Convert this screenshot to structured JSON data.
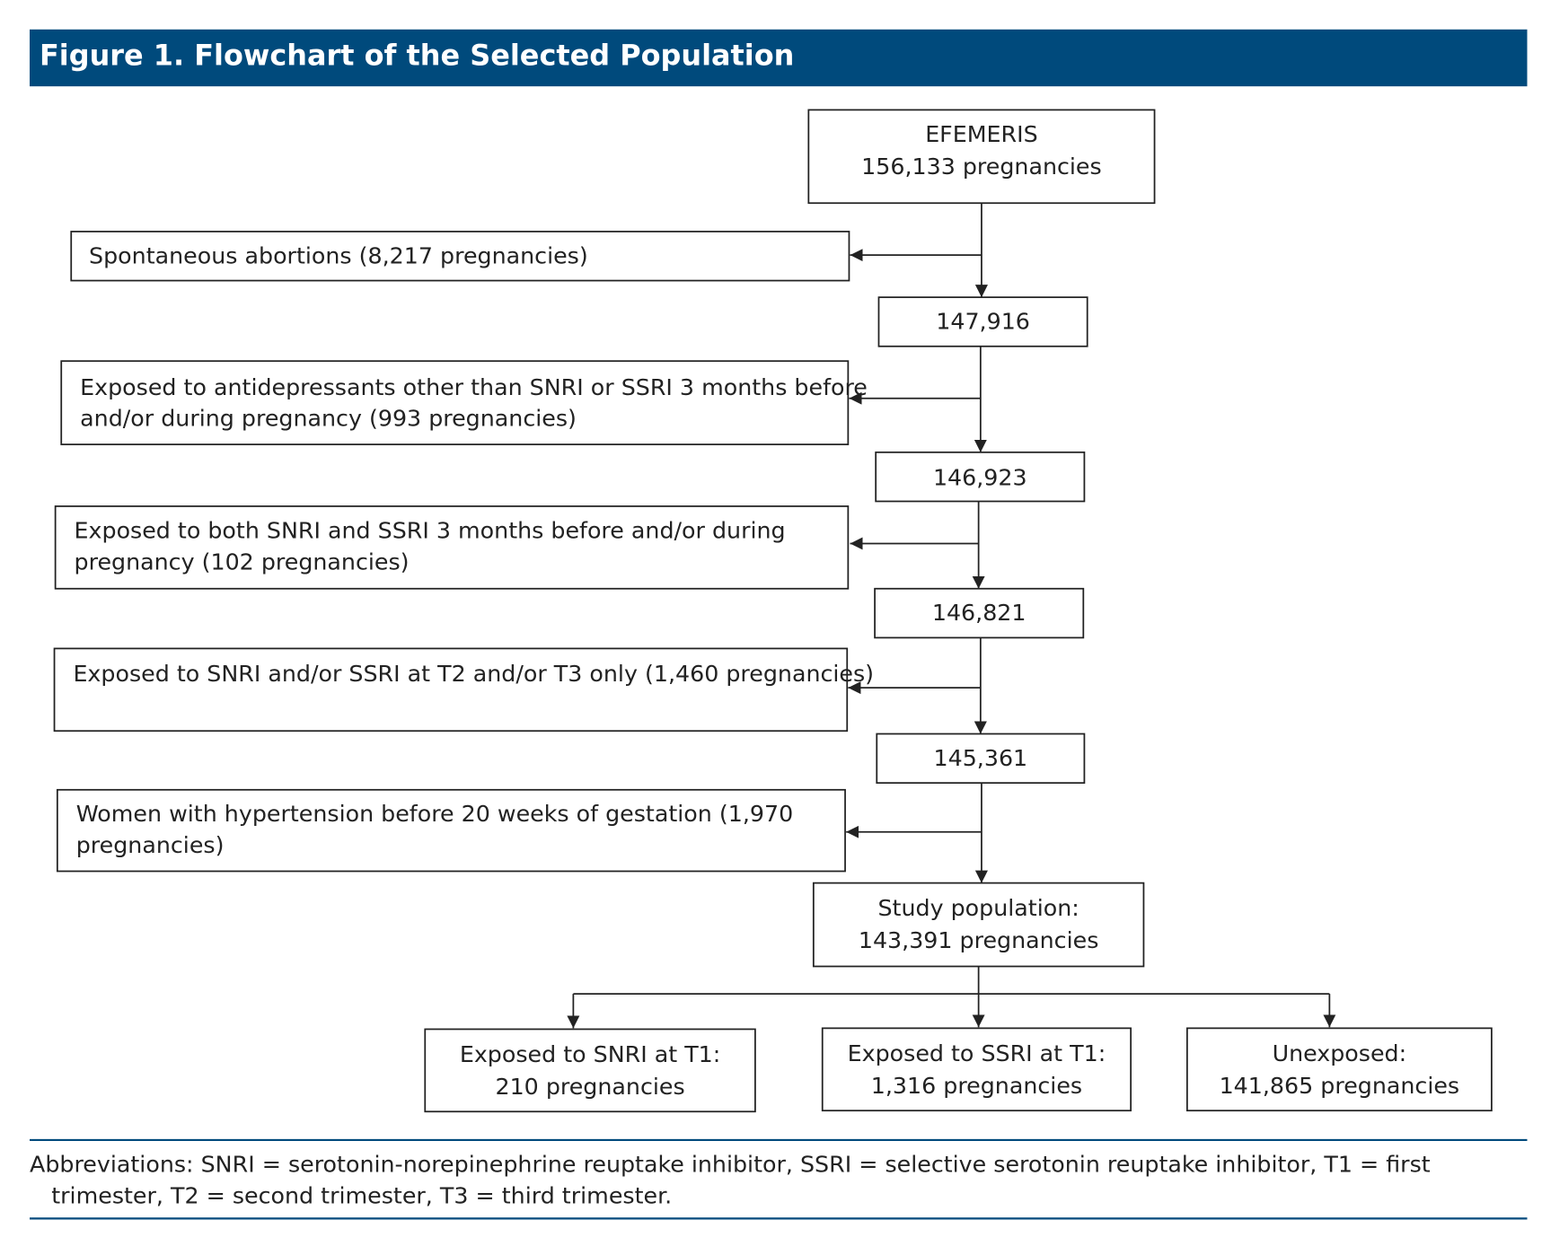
{
  "header": {
    "title": "Figure 1. Flowchart of the Selected Population"
  },
  "nodes": [
    {
      "lines": [
        "EFEMERIS",
        "156,133 pregnancies"
      ]
    },
    {
      "lines": [
        "147,916"
      ]
    },
    {
      "lines": [
        "146,923"
      ]
    },
    {
      "lines": [
        "146,821"
      ]
    },
    {
      "lines": [
        "145,361"
      ]
    },
    {
      "lines": [
        "Study population:",
        "143,391 pregnancies"
      ]
    }
  ],
  "exclusions": [
    {
      "lines": [
        "Spontaneous abortions (8,217 pregnancies)"
      ]
    },
    {
      "lines": [
        "Exposed to antidepressants other than SNRI or SSRI 3 months before",
        "and/or during pregnancy (993 pregnancies)"
      ]
    },
    {
      "lines": [
        "Exposed to both SNRI and SSRI  3 months before and/or during",
        "pregnancy (102 pregnancies)"
      ]
    },
    {
      "lines": [
        "Exposed to SNRI and/or SSRI at T2 and/or T3 only (1,460 pregnancies)"
      ]
    },
    {
      "lines": [
        "Women with hypertension before 20 weeks of gestation (1,970",
        "pregnancies)"
      ]
    }
  ],
  "groups": [
    {
      "lines": [
        "Exposed to SNRI at T1:",
        "210 pregnancies"
      ]
    },
    {
      "lines": [
        "Exposed to SSRI at T1:",
        "1,316 pregnancies"
      ]
    },
    {
      "lines": [
        "Unexposed:",
        "141,865 pregnancies"
      ]
    }
  ],
  "footnote": {
    "lines": [
      "Abbreviations: SNRI = serotonin-norepinephrine reuptake inhibitor, SSRI = selective serotonin reuptake inhibitor, T1 = first",
      "trimester, T2 = second trimester, T3 = third trimester."
    ]
  }
}
